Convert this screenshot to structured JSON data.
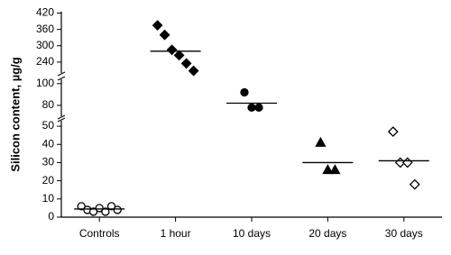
{
  "chart_data": {
    "type": "scatter",
    "y_label": "Silicon content, µg/g",
    "categories": [
      "Controls",
      "1 hour",
      "10 days",
      "20 days",
      "30 days"
    ],
    "markers": [
      "circle-open",
      "diamond",
      "circle",
      "triangle",
      "diamond-open"
    ],
    "color": "#000000",
    "values": [
      [
        6,
        4,
        3,
        5,
        3,
        6,
        4
      ],
      [
        375,
        340,
        285,
        265,
        235,
        208
      ],
      [
        92,
        78,
        78
      ],
      [
        41,
        26,
        26
      ],
      [
        47,
        30,
        30,
        18
      ]
    ],
    "medians": [
      4.5,
      280,
      82,
      30,
      31
    ],
    "y_segments": [
      {
        "ylim": [
          0,
          53
        ],
        "yticks": [
          0,
          10,
          20,
          30,
          40,
          50
        ]
      },
      {
        "ylim": [
          70,
          104
        ],
        "yticks": [
          80,
          100
        ]
      },
      {
        "ylim": [
          200,
          425
        ],
        "yticks": [
          240,
          300,
          360,
          420
        ]
      }
    ]
  }
}
